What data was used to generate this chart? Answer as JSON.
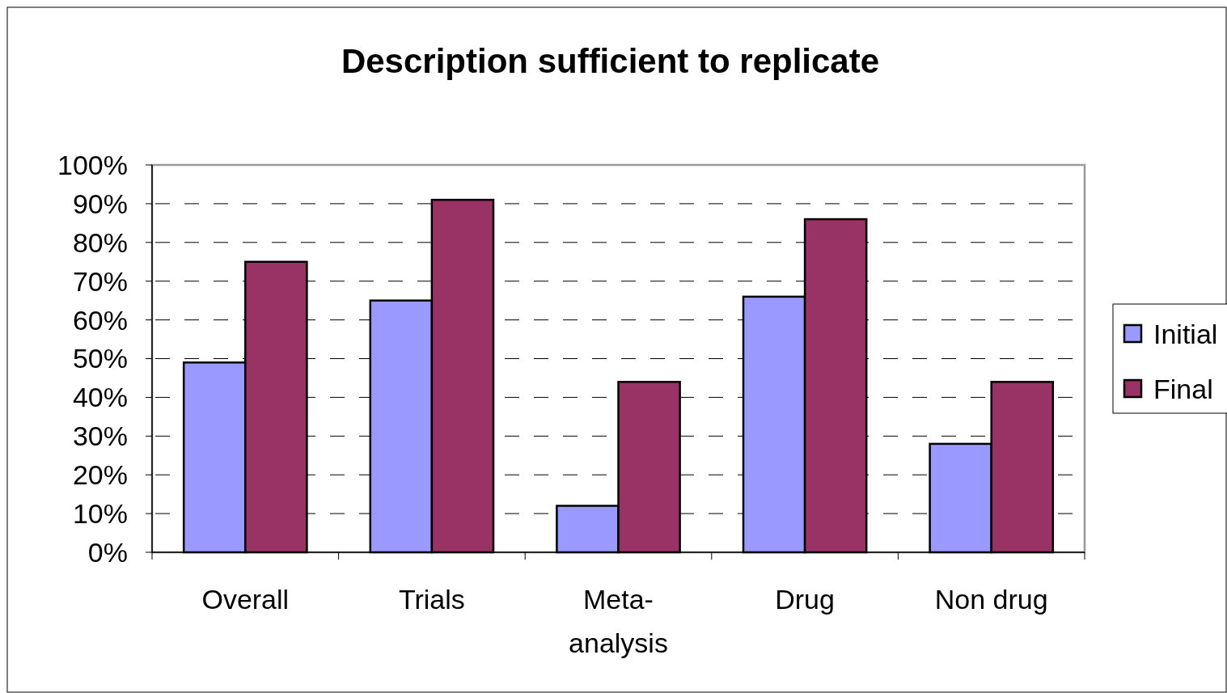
{
  "chart_data": {
    "type": "bar",
    "title": "Description sufficient to replicate",
    "categories": [
      "Overall",
      "Trials",
      "Meta-analysis",
      "Drug",
      "Non drug"
    ],
    "series": [
      {
        "name": "Initial",
        "color": "#9999ff",
        "values": [
          49,
          65,
          12,
          66,
          28
        ]
      },
      {
        "name": "Final",
        "color": "#993366",
        "values": [
          75,
          91,
          44,
          86,
          44
        ]
      }
    ],
    "ylim": [
      0,
      100
    ],
    "yticks": [
      {
        "value": 0,
        "label": "0%"
      },
      {
        "value": 10,
        "label": "10%"
      },
      {
        "value": 20,
        "label": "20%"
      },
      {
        "value": 30,
        "label": "30%"
      },
      {
        "value": 40,
        "label": "40%"
      },
      {
        "value": 50,
        "label": "50%"
      },
      {
        "value": 60,
        "label": "60%"
      },
      {
        "value": 70,
        "label": "70%"
      },
      {
        "value": 80,
        "label": "80%"
      },
      {
        "value": 90,
        "label": "90%"
      },
      {
        "value": 100,
        "label": "100%"
      }
    ],
    "grid": "y",
    "line_style": "dashed",
    "legend": "right"
  }
}
